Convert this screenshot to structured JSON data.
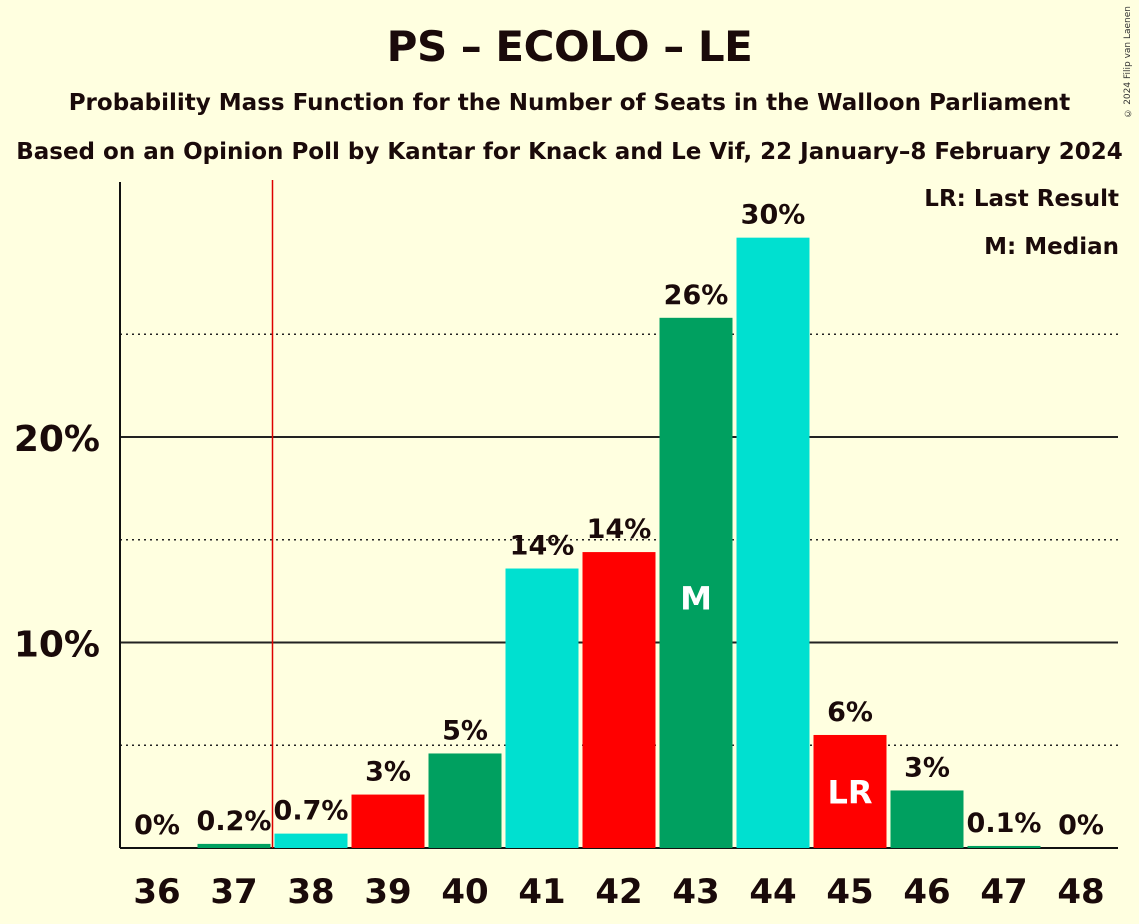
{
  "title": "PS – ECOLO – LE",
  "subtitle1": "Probability Mass Function for the Number of Seats in the Walloon Parliament",
  "subtitle2": "Based on an Opinion Poll by Kantar for Knack and Le Vif, 22 January–8 February 2024",
  "copyright": "© 2024 Filip van Laenen",
  "legend": {
    "lr": "LR: Last Result",
    "m": "M: Median"
  },
  "colors": {
    "background": "#ffffe0",
    "cyan": "#00e0d0",
    "red": "#ff0000",
    "green": "#00a060",
    "last_result_line": "#dd0000"
  },
  "chart_data": {
    "type": "bar",
    "categories": [
      "36",
      "37",
      "38",
      "39",
      "40",
      "41",
      "42",
      "43",
      "44",
      "45",
      "46",
      "47",
      "48"
    ],
    "values": [
      0,
      0.2,
      0.7,
      2.6,
      4.6,
      13.6,
      14.4,
      25.8,
      29.7,
      5.5,
      2.8,
      0.1,
      0
    ],
    "labels": [
      "0%",
      "0.2%",
      "0.7%",
      "3%",
      "5%",
      "14%",
      "14%",
      "26%",
      "30%",
      "6%",
      "3%",
      "0.1%",
      "0%"
    ],
    "bar_colors": [
      "#00a060",
      "#00a060",
      "#00e0d0",
      "#ff0000",
      "#00a060",
      "#00e0d0",
      "#ff0000",
      "#00a060",
      "#00e0d0",
      "#ff0000",
      "#00a060",
      "#00a060",
      "#00a060"
    ],
    "yticks": [
      10,
      20
    ],
    "ytick_labels": [
      "10%",
      "20%"
    ],
    "minor_gridlines": [
      5,
      15,
      25
    ],
    "ylim": [
      0,
      32
    ],
    "last_result_after": "37",
    "median": "43",
    "median_label": "M",
    "last_result": "45",
    "last_result_label": "LR"
  }
}
